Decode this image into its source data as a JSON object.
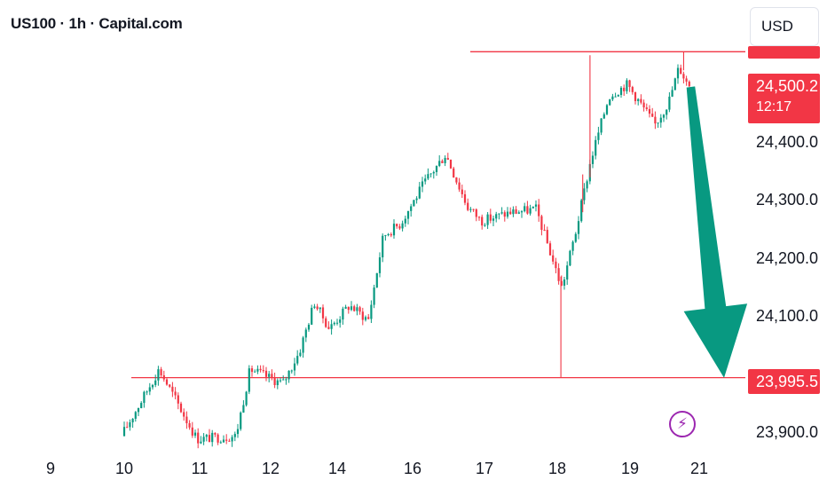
{
  "header": {
    "title": "US100 · 1h · Capital.com",
    "currency": "USD"
  },
  "price_label": {
    "price": "24,500.2",
    "timer": "12:17"
  },
  "support_label": "23,995.5",
  "icons": {
    "alert": "lightning-icon",
    "arrow": "down-arrow-icon"
  },
  "colors": {
    "up": "#089981",
    "down": "#f23645",
    "level": "#f23645",
    "arrow": "#089981",
    "alert": "#9c27b0"
  },
  "chart_data": {
    "type": "candlestick",
    "symbol": "US100",
    "timeframe": "1h",
    "ylim": [
      23870,
      24560
    ],
    "y_ticks": [
      {
        "value": 24400,
        "label": "24,400.0"
      },
      {
        "value": 24300,
        "label": "24,300.0"
      },
      {
        "value": 24200,
        "label": "24,200.0"
      },
      {
        "value": 24100,
        "label": "24,100.0"
      },
      {
        "value": 23900,
        "label": "23,900.0"
      }
    ],
    "x_ticks": [
      "9",
      "10",
      "11",
      "12",
      "14",
      "16",
      "17",
      "18",
      "19",
      "21"
    ],
    "last_price": 24500.2,
    "levels": [
      {
        "name": "resistance",
        "value": 24556
      },
      {
        "name": "support",
        "value": 23995.5
      }
    ],
    "anchors": [
      {
        "time": "10",
        "price": 23895
      },
      {
        "time": "10.5",
        "price": 24010
      },
      {
        "time": "11",
        "price": 23890
      },
      {
        "time": "11.55",
        "price": 23895
      },
      {
        "time": "11.75",
        "price": 24010
      },
      {
        "time": "12.45",
        "price": 23985
      },
      {
        "time": "12.95",
        "price": 24040
      },
      {
        "time": "13.4",
        "price": 24125
      },
      {
        "time": "13.85",
        "price": 24080
      },
      {
        "time": "14.4",
        "price": 24120
      },
      {
        "time": "14.9",
        "price": 24095
      },
      {
        "time": "15.3",
        "price": 24240
      },
      {
        "time": "15.75",
        "price": 24260
      },
      {
        "time": "16.2",
        "price": 24330
      },
      {
        "time": "16.5",
        "price": 24380
      },
      {
        "time": "16.8",
        "price": 24290
      },
      {
        "time": "17",
        "price": 24265
      },
      {
        "time": "17.4",
        "price": 24280
      },
      {
        "time": "17.75",
        "price": 24285
      },
      {
        "time": "18.1",
        "price": 24150
      },
      {
        "time": "18.3",
        "price": 24250
      },
      {
        "time": "18.5",
        "price": 24370
      },
      {
        "time": "18.75",
        "price": 24480
      },
      {
        "time": "19.0",
        "price": 24500
      },
      {
        "time": "19.35",
        "price": 24470
      },
      {
        "time": "19.8",
        "price": 24430
      },
      {
        "time": "20.2",
        "price": 24470
      },
      {
        "time": "20.5",
        "price": 24530
      },
      {
        "time": "20.75",
        "price": 24500
      }
    ],
    "notable_wicks": [
      {
        "time": "18.05",
        "low": 23995.5
      },
      {
        "time": "18.35",
        "low": 24345
      },
      {
        "time": "18.45",
        "high": 24550
      },
      {
        "time": "20.55",
        "high": 24556
      }
    ],
    "annotation": {
      "type": "down-arrow",
      "from_time": "20.9",
      "from_price": 24495,
      "to_time": "21.15",
      "to_price": 23995
    }
  }
}
